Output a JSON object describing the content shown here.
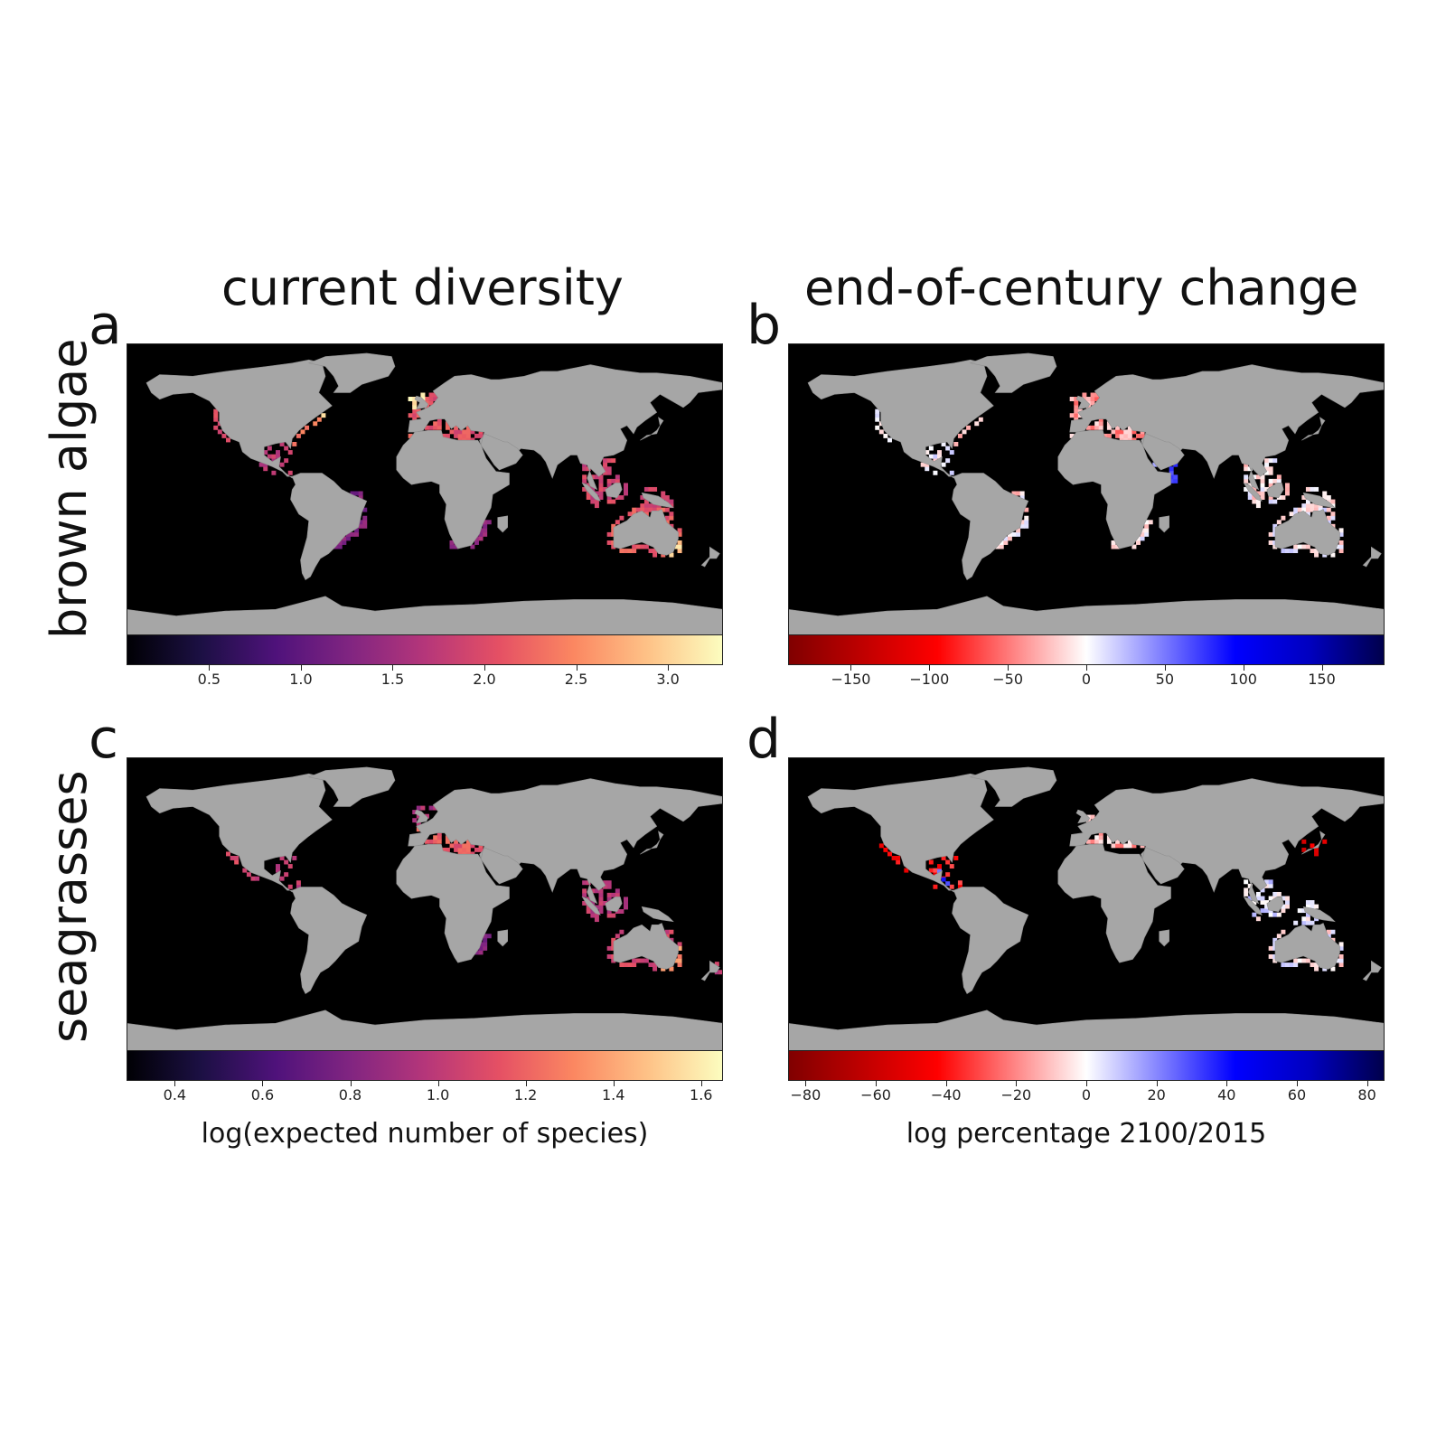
{
  "columns": {
    "left_title": "current diversity",
    "right_title": "end-of-century change"
  },
  "rows": {
    "top_label": "brown algae",
    "bottom_label": "seagrasses"
  },
  "panels": [
    {
      "letter": "a",
      "variable": "current diversity",
      "group": "brown algae"
    },
    {
      "letter": "b",
      "variable": "end-of-century change",
      "group": "brown algae"
    },
    {
      "letter": "c",
      "variable": "current diversity",
      "group": "seagrasses"
    },
    {
      "letter": "d",
      "variable": "end-of-century change",
      "group": "seagrasses"
    }
  ],
  "colorbars": {
    "a": {
      "colormap": "magma",
      "range": [
        0.05,
        3.3
      ],
      "ticks": [
        "0.5",
        "1.0",
        "1.5",
        "2.0",
        "2.5",
        "3.0"
      ],
      "tick_values": [
        0.5,
        1.0,
        1.5,
        2.0,
        2.5,
        3.0
      ]
    },
    "b": {
      "colormap": "seismic_r",
      "range": [
        -190,
        190
      ],
      "ticks": [
        "−150",
        "−100",
        "−50",
        "0",
        "50",
        "100",
        "150"
      ],
      "tick_values": [
        -150,
        -100,
        -50,
        0,
        50,
        100,
        150
      ]
    },
    "c": {
      "colormap": "magma",
      "range": [
        0.29,
        1.65
      ],
      "ticks": [
        "0.4",
        "0.6",
        "0.8",
        "1.0",
        "1.2",
        "1.4",
        "1.6"
      ],
      "tick_values": [
        0.4,
        0.6,
        0.8,
        1.0,
        1.2,
        1.4,
        1.6
      ]
    },
    "d": {
      "colormap": "seismic_r",
      "range": [
        -85,
        85
      ],
      "ticks": [
        "−80",
        "−60",
        "−40",
        "−20",
        "0",
        "20",
        "40",
        "60",
        "80"
      ],
      "tick_values": [
        -80,
        -60,
        -40,
        -20,
        0,
        20,
        40,
        60,
        80
      ]
    }
  },
  "colorbar_labels": {
    "left": "log(expected number of species)",
    "right": "log percentage 2100/2015"
  },
  "colors": {
    "ocean": "#000000",
    "land": "#a6a6a6",
    "magma_low": "#000004",
    "magma_high": "#fcfdbf",
    "seismic_neg": "#800000",
    "seismic_pos": "#00004c"
  }
}
